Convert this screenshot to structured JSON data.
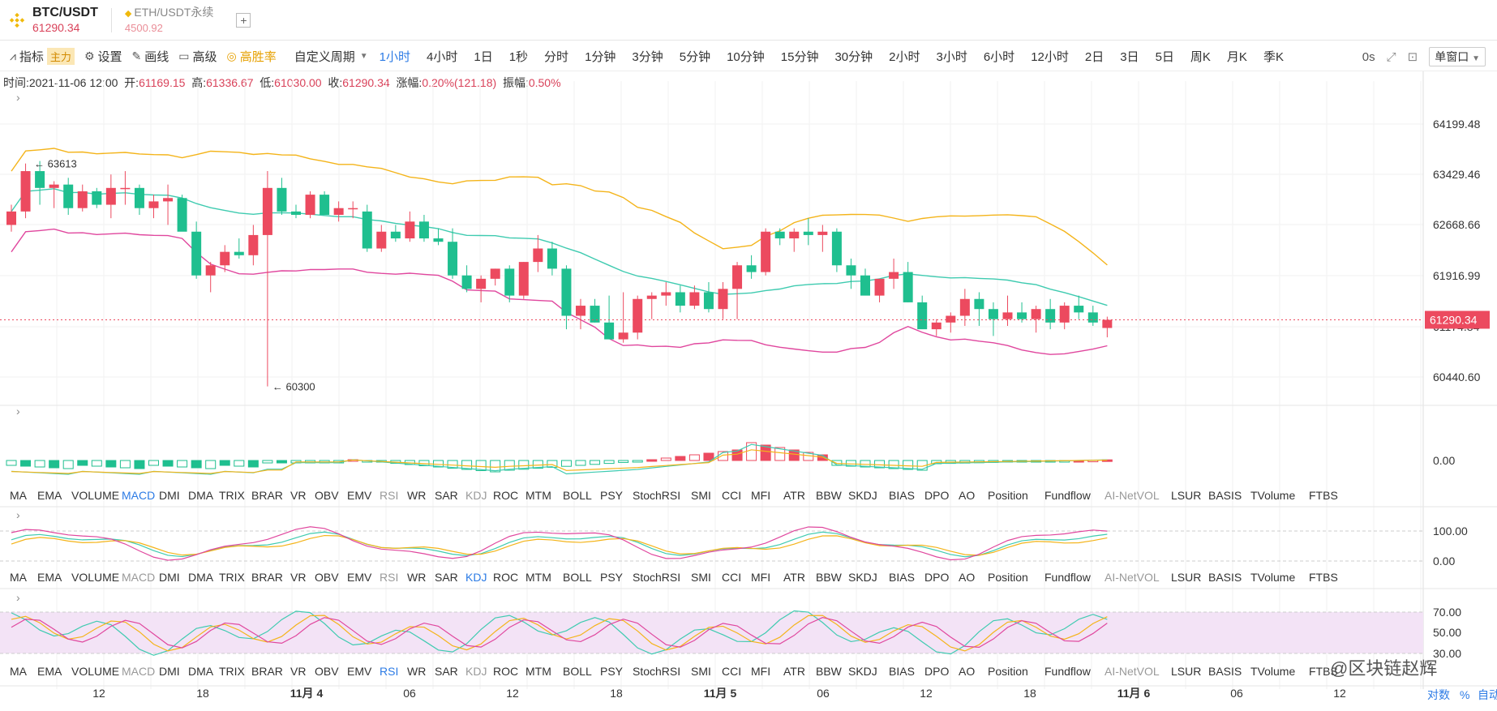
{
  "tabs": [
    {
      "title": "BTC/USDT",
      "price": "61290.34",
      "active": true
    },
    {
      "title": "ETH/USDT永续",
      "price": "4500.92",
      "active": false
    }
  ],
  "add_tab_label": "+",
  "toolbar": {
    "indicators_label": "指标",
    "indicators_badge": "主力",
    "settings_label": "设置",
    "draw_label": "画线",
    "advanced_label": "高级",
    "winrate_label": "高胜率",
    "custom_period_label": "自定义周期",
    "periods": [
      "1小时",
      "4小时",
      "1日",
      "1秒",
      "分时",
      "1分钟",
      "3分钟",
      "5分钟",
      "10分钟",
      "15分钟",
      "30分钟",
      "2小时",
      "3小时",
      "6小时",
      "12小时",
      "2日",
      "3日",
      "5日",
      "周K",
      "月K",
      "季K"
    ],
    "active_period": "1小时",
    "countdown": "0s",
    "window_mode": "单窗口"
  },
  "info": {
    "time_label": "时间:",
    "time": "2021-11-06 12:00",
    "open_label": "开:",
    "open": "61169.15",
    "high_label": "高:",
    "high": "61336.67",
    "low_label": "低:",
    "low": "61030.00",
    "close_label": "收:",
    "close": "61290.34",
    "change_label": "涨幅:",
    "change": "0.20%(121.18)",
    "amp_label": "振幅:",
    "amp": "0.50%"
  },
  "main_chart": {
    "y_ticks": [
      "64199.48",
      "63429.46",
      "62668.66",
      "61916.99",
      "61174.84",
      "60440.60"
    ],
    "current_price": "61290.34",
    "high_marker": "63613",
    "low_marker": "60300"
  },
  "macd_pane": {
    "y_ticks": [
      "0.00"
    ]
  },
  "kdj_pane": {
    "y_ticks": [
      "100.00",
      "0.00"
    ]
  },
  "rsi_pane": {
    "y_ticks": [
      "70.00",
      "50.00",
      "30.00"
    ]
  },
  "indicator_tabs": [
    "MA",
    "EMA",
    "VOLUME",
    "MACD",
    "DMI",
    "DMA",
    "TRIX",
    "BRAR",
    "VR",
    "OBV",
    "EMV",
    "RSI",
    "WR",
    "SAR",
    "KDJ",
    "ROC",
    "MTM",
    "BOLL",
    "PSY",
    "StochRSI",
    "SMI",
    "CCI",
    "MFI",
    "ATR",
    "BBW",
    "SKDJ",
    "BIAS",
    "DPO",
    "AO",
    "Position",
    "Fundflow",
    "AI-NetVOL",
    "LSUR",
    "BASIS",
    "TVolume",
    "FTBS"
  ],
  "indicator_rows": [
    {
      "active": "MACD"
    },
    {
      "active": "KDJ"
    },
    {
      "active": "RSI"
    }
  ],
  "x_axis": [
    "12",
    "18",
    "11月 4",
    "06",
    "12",
    "18",
    "11月 5",
    "06",
    "12",
    "18",
    "11月 6",
    "06",
    "12"
  ],
  "axis_modes": [
    "对数",
    "%",
    "自动"
  ],
  "watermark": "@区块链赵辉",
  "colors": {
    "up": "#ec4a5f",
    "down": "#1fbf8f",
    "boll_upper": "#f4b41a",
    "boll_mid": "#3fcbb0",
    "boll_lower": "#e0479e",
    "active": "#2c7be5"
  }
}
